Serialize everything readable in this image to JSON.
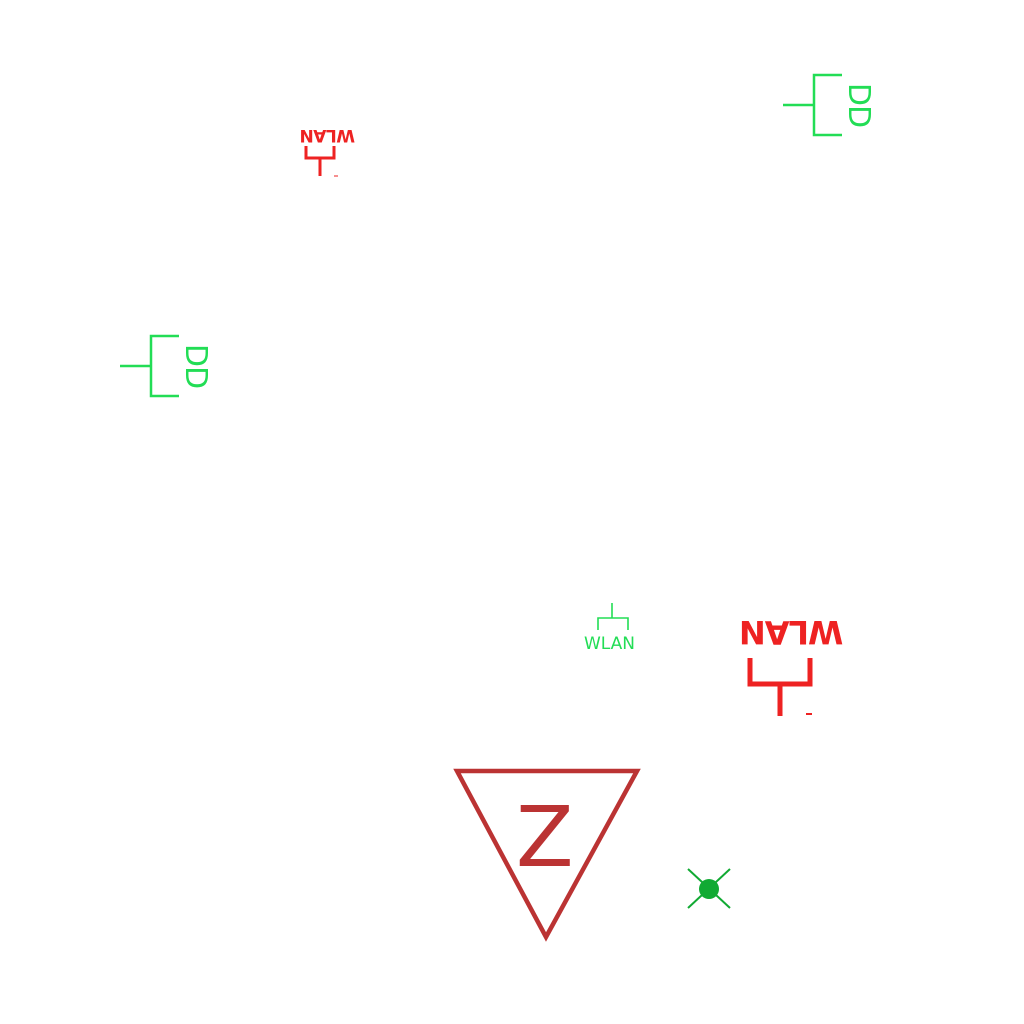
{
  "colors": {
    "red": "#ee2222",
    "green": "#22dd55",
    "dark_red": "#bb3333",
    "dark_green": "#11aa33"
  },
  "symbols": [
    {
      "id": "wlan-red-small",
      "icon": "wlan-antenna-icon",
      "label": "WLAN",
      "color": "red",
      "rotated": true
    },
    {
      "id": "dd-green-top-right",
      "icon": "dd-socket-icon",
      "label": "DD",
      "color": "green",
      "rotated": true
    },
    {
      "id": "dd-green-left",
      "icon": "dd-socket-icon",
      "label": "DD",
      "color": "green",
      "rotated": true
    },
    {
      "id": "wlan-green-small",
      "icon": "wlan-antenna-icon",
      "label": "WLAN",
      "color": "green",
      "rotated": false
    },
    {
      "id": "wlan-red-large",
      "icon": "wlan-antenna-icon",
      "label": "WLAN",
      "color": "red",
      "rotated": true
    },
    {
      "id": "z-triangle",
      "icon": "triangle-marker-icon",
      "label": "Z",
      "color": "dark_red",
      "rotated": false
    },
    {
      "id": "green-point",
      "icon": "cross-point-icon",
      "label": "",
      "color": "dark_green",
      "rotated": false
    }
  ]
}
